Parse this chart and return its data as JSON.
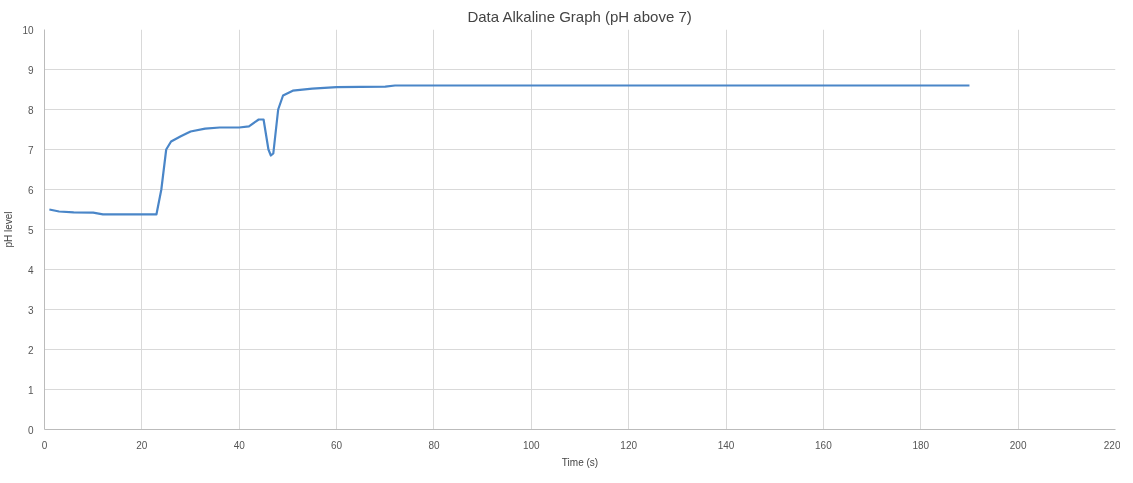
{
  "chart_data": {
    "type": "line",
    "title": "Data Alkaline Graph (pH above 7)",
    "xlabel": "Time (s)",
    "ylabel": "pH level",
    "xlim": [
      0,
      220
    ],
    "xticks": [
      0,
      20,
      40,
      60,
      80,
      100,
      120,
      140,
      160,
      180,
      200,
      220
    ],
    "ylim": [
      0,
      10
    ],
    "yticks": [
      0,
      1,
      2,
      3,
      4,
      5,
      6,
      7,
      8,
      9,
      10
    ],
    "grid": true,
    "line_style": "solid",
    "series": [
      {
        "color": "#4a86c8",
        "x": [
          1,
          3,
          6,
          10,
          12,
          16,
          20,
          23,
          24,
          25,
          26,
          28,
          30,
          33,
          36,
          40,
          42,
          44,
          45,
          46,
          46.5,
          47,
          48,
          49,
          51,
          55,
          60,
          70,
          72,
          100,
          190
        ],
        "values": [
          5.5,
          5.45,
          5.43,
          5.42,
          5.38,
          5.38,
          5.38,
          5.38,
          6.0,
          7.0,
          7.2,
          7.33,
          7.45,
          7.52,
          7.55,
          7.55,
          7.58,
          7.75,
          7.75,
          7.0,
          6.85,
          6.9,
          8.0,
          8.35,
          8.47,
          8.52,
          8.56,
          8.57,
          8.6,
          8.6,
          8.6
        ]
      }
    ]
  }
}
